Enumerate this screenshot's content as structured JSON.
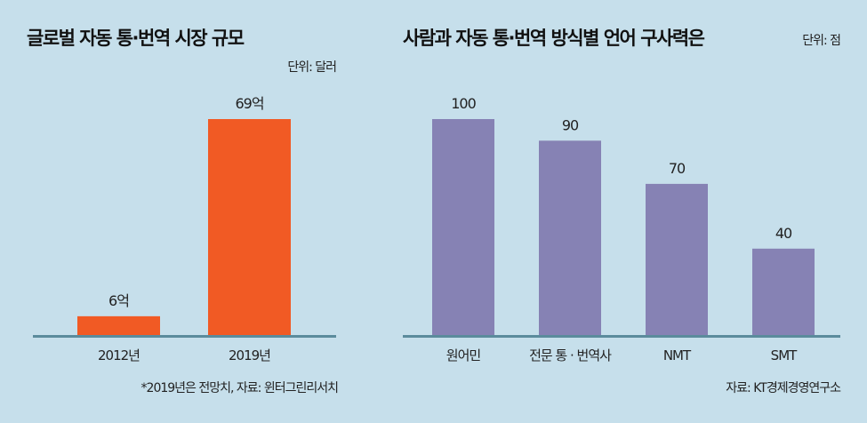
{
  "colors": {
    "background": "#c6dfeb",
    "orange": "#f15a24",
    "purple": "#8682b4",
    "axis": "#5b8b9c"
  },
  "chart_data": [
    {
      "type": "bar",
      "title": "글로벌 자동 통·번역 시장 규모",
      "unit": "단위: 달러",
      "categories": [
        "2012년",
        "2019년"
      ],
      "values": [
        6,
        69
      ],
      "value_labels": [
        "6억",
        "69억"
      ],
      "value_unit": "억 달러",
      "ylim": [
        0,
        69
      ],
      "note": "*2019년은 전망치, 자료: 윈터그린리서치",
      "color": "#f15a24"
    },
    {
      "type": "bar",
      "title": "사람과 자동 통·번역 방식별 언어 구사력은",
      "unit": "단위: 점",
      "categories": [
        "원어민",
        "전문 통 · 번역사",
        "NMT",
        "SMT"
      ],
      "values": [
        100,
        90,
        70,
        40
      ],
      "value_labels": [
        "100",
        "90",
        "70",
        "40"
      ],
      "ylim": [
        0,
        100
      ],
      "note": "자료: KT경제경영연구소",
      "color": "#8682b4"
    }
  ]
}
